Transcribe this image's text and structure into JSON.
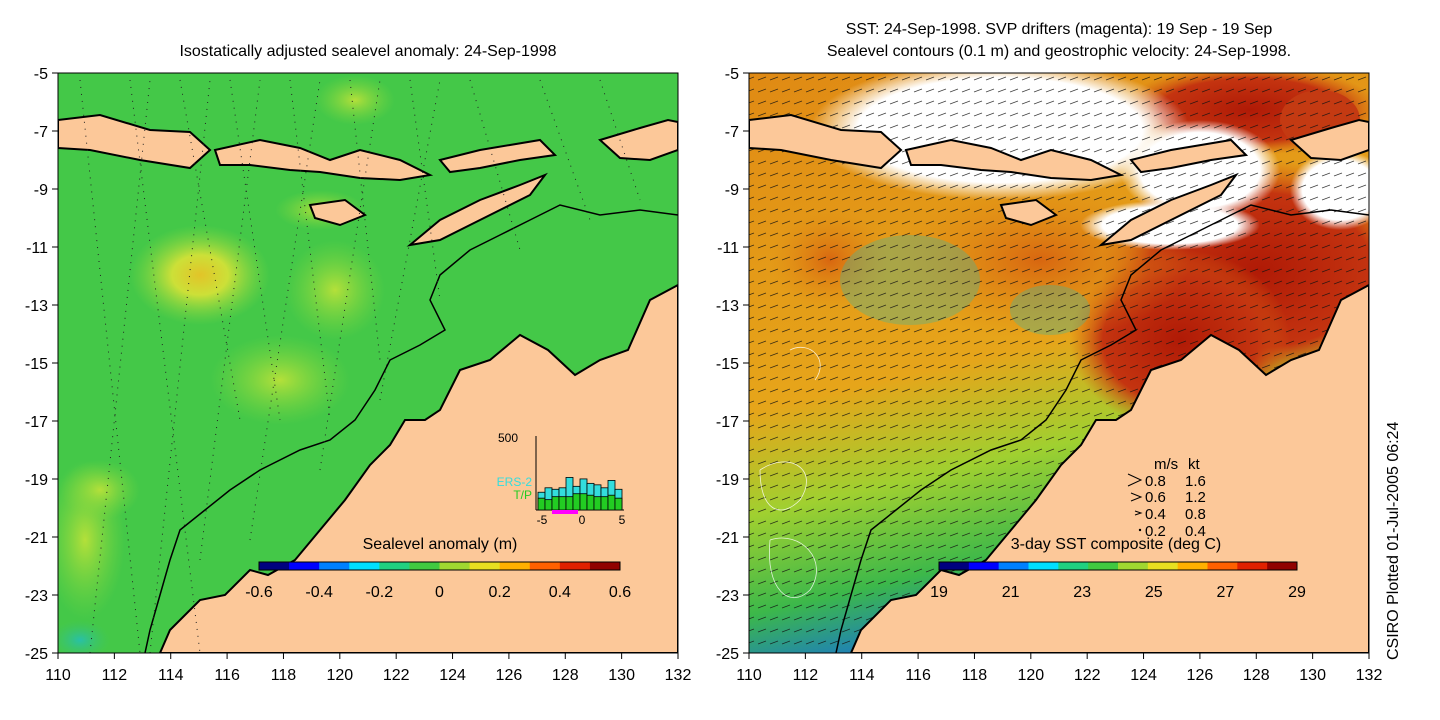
{
  "left_panel": {
    "title": "Isostatically adjusted sealevel anomaly: 24-Sep-1998",
    "colorbar": {
      "label": "Sealevel anomaly (m)",
      "ticks": [
        "-0.6",
        "-0.4",
        "-0.2",
        "0",
        "0.2",
        "0.4",
        "0.6"
      ],
      "min": -0.6,
      "max": 0.6
    },
    "inset": {
      "ymax_label": "500",
      "series_labels": [
        "ERS-2",
        "T/P"
      ],
      "series_colors": [
        "#33dddd",
        "#22cc22"
      ],
      "x_ticks": [
        "-5",
        "0",
        "5"
      ],
      "ers2_counts": [
        120,
        150,
        140,
        150,
        220,
        160,
        210,
        180,
        170,
        150,
        200,
        140
      ],
      "tp_counts": [
        80,
        70,
        90,
        90,
        90,
        110,
        110,
        100,
        90,
        90,
        100,
        80
      ]
    }
  },
  "right_panel": {
    "title_line1": "SST: 24-Sep-1998. SVP drifters (magenta): 19 Sep - 19 Sep",
    "title_line2": "Sealevel contours (0.1 m) and geostrophic velocity: 24-Sep-1998.",
    "colorbar": {
      "label": "3-day SST composite (deg C)",
      "ticks": [
        "19",
        "21",
        "23",
        "25",
        "27",
        "29"
      ],
      "min": 19,
      "max": 29
    },
    "velocity_legend": {
      "header_ms": "m/s",
      "header_kt": "kt",
      "rows": [
        {
          "ms": "0.8",
          "kt": "1.6"
        },
        {
          "ms": "0.6",
          "kt": "1.2"
        },
        {
          "ms": "0.4",
          "kt": "0.8"
        },
        {
          "ms": "0.2",
          "kt": "0.4"
        }
      ]
    }
  },
  "axes": {
    "lon_ticks": [
      "110",
      "112",
      "114",
      "116",
      "118",
      "120",
      "122",
      "124",
      "126",
      "128",
      "130",
      "132"
    ],
    "lat_ticks": [
      "-5",
      "-7",
      "-9",
      "-11",
      "-13",
      "-15",
      "-17",
      "-19",
      "-21",
      "-23",
      "-25"
    ],
    "lon_range": [
      110,
      132
    ],
    "lat_range": [
      -25,
      -5
    ]
  },
  "credit": "CSIRO Plotted 01-Jul-2005 06:24",
  "colors": {
    "land": "#fcc899",
    "ocean_anomaly": "#44cc44",
    "sst_warm": "#e07a10",
    "sst_hot": "#b82208",
    "cloud": "#ffffff"
  }
}
